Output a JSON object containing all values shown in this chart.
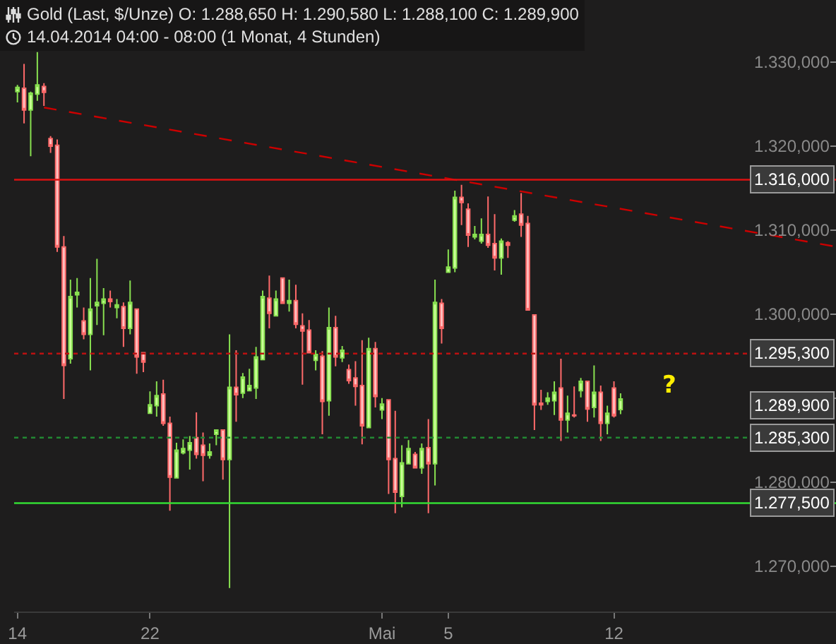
{
  "chart_data": {
    "type": "candlestick",
    "title": "Gold (Last, $/Unze)  O: 1.288,650  H: 1.290,580  L: 1.288,100  C: 1.289,900",
    "subtitle": "14.04.2014 04:00 - 08:00 (1 Monat, 4 Stunden)",
    "categories": [
      "14",
      null,
      null,
      null,
      null,
      null,
      null,
      null,
      null,
      null,
      null,
      null,
      null,
      null,
      null,
      null,
      null,
      null,
      null,
      null,
      "22",
      null,
      null,
      null,
      null,
      null,
      null,
      null,
      null,
      null,
      null,
      null,
      null,
      null,
      null,
      null,
      null,
      null,
      null,
      null,
      null,
      null,
      null,
      null,
      null,
      null,
      null,
      null,
      null,
      null,
      null,
      null,
      null,
      null,
      null,
      "Mai",
      null,
      null,
      null,
      null,
      null,
      null,
      null,
      null,
      null,
      "5",
      null,
      null,
      null,
      null,
      null,
      null,
      null,
      null,
      null,
      null,
      null,
      null,
      null,
      null,
      null,
      null,
      null,
      null,
      null,
      null,
      null,
      null,
      null,
      null,
      "12",
      null,
      null,
      null,
      null,
      null,
      null,
      null,
      null,
      null,
      null,
      null,
      null,
      null,
      null,
      null,
      null,
      null,
      null,
      null,
      null,
      null,
      null,
      null,
      null,
      null,
      null,
      null,
      null,
      null,
      null,
      null,
      null,
      null
    ],
    "ohlc": [
      [
        1326.5,
        1327.3,
        1325.2,
        1327.0
      ],
      [
        1326.9,
        1329.8,
        1322.7,
        1324.3
      ],
      [
        1324.3,
        1326.5,
        1318.8,
        1326.3
      ],
      [
        1326.2,
        1331.2,
        1325.4,
        1327.3
      ],
      [
        1327.1,
        1327.5,
        1324.8,
        1326.4
      ],
      [
        1320.9,
        1321.2,
        1319.2,
        1320.0
      ],
      [
        1320.1,
        1320.8,
        1307.4,
        1308.0
      ],
      [
        1308.0,
        1309.3,
        1289.9,
        1293.9
      ],
      [
        1294.7,
        1304.1,
        1294.1,
        1302.1
      ],
      [
        1302.3,
        1304.3,
        1300.8,
        1302.6
      ],
      [
        1299.2,
        1300.8,
        1297.0,
        1297.6
      ],
      [
        1297.6,
        1304.3,
        1293.3,
        1300.6
      ],
      [
        1301.0,
        1306.6,
        1298.7,
        1301.4
      ],
      [
        1301.3,
        1303.1,
        1297.5,
        1301.8
      ],
      [
        1301.8,
        1302.8,
        1300.8,
        1301.5
      ],
      [
        1300.8,
        1301.8,
        1299.5,
        1301.1
      ],
      [
        1300.9,
        1301.4,
        1296.1,
        1298.3
      ],
      [
        1298.3,
        1304.0,
        1297.6,
        1301.4
      ],
      [
        1300.6,
        1300.6,
        1292.9,
        1294.9
      ],
      [
        1295.4,
        1295.5,
        1293.1,
        1294.3
      ],
      [
        1288.2,
        1290.8,
        1288.2,
        1289.2
      ],
      [
        1289.1,
        1292.0,
        1287.8,
        1290.3
      ],
      [
        1290.5,
        1292.2,
        1286.7,
        1287.0
      ],
      [
        1287.0,
        1287.8,
        1276.6,
        1280.6
      ],
      [
        1280.5,
        1284.7,
        1280.5,
        1283.8
      ],
      [
        1283.5,
        1285.1,
        1283.3,
        1284.0
      ],
      [
        1283.8,
        1285.5,
        1281.5,
        1284.7
      ],
      [
        1285.3,
        1288.3,
        1282.8,
        1283.3
      ],
      [
        1284.4,
        1285.9,
        1280.1,
        1283.2
      ],
      [
        1283.2,
        1284.6,
        1282.8,
        1283.6
      ],
      [
        1285.7,
        1286.2,
        1284.4,
        1286.2
      ],
      [
        1286.2,
        1286.2,
        1280.3,
        1282.7
      ],
      [
        1282.7,
        1297.6,
        1267.4,
        1291.3
      ],
      [
        1291.3,
        1295.7,
        1287.2,
        1290.4
      ],
      [
        1290.6,
        1293.0,
        1290.0,
        1292.5
      ],
      [
        1290.9,
        1293.5,
        1290.9,
        1291.5
      ],
      [
        1291.2,
        1296.1,
        1289.9,
        1294.9
      ],
      [
        1294.6,
        1302.8,
        1294.6,
        1302.1
      ],
      [
        1301.9,
        1304.6,
        1298.3,
        1300.1
      ],
      [
        1299.8,
        1302.8,
        1299.8,
        1301.8
      ],
      [
        1304.3,
        1304.3,
        1301.3,
        1301.3
      ],
      [
        1301.3,
        1304.1,
        1300.3,
        1301.6
      ],
      [
        1301.6,
        1303.5,
        1298.3,
        1298.8
      ],
      [
        1298.6,
        1300.1,
        1291.6,
        1298.0
      ],
      [
        1298.1,
        1299.3,
        1295.4,
        1295.4
      ],
      [
        1294.5,
        1295.7,
        1293.3,
        1295.2
      ],
      [
        1295.0,
        1295.6,
        1285.7,
        1289.6
      ],
      [
        1289.7,
        1300.8,
        1287.9,
        1298.4
      ],
      [
        1298.4,
        1299.8,
        1293.8,
        1294.9
      ],
      [
        1294.8,
        1296.2,
        1294.3,
        1295.7
      ],
      [
        1293.4,
        1294.0,
        1291.7,
        1292.1
      ],
      [
        1292.4,
        1294.4,
        1289.1,
        1291.4
      ],
      [
        1291.5,
        1296.9,
        1284.5,
        1286.7
      ],
      [
        1286.5,
        1297.2,
        1286.5,
        1295.9
      ],
      [
        1295.9,
        1296.7,
        1288.9,
        1290.2
      ],
      [
        1288.6,
        1290.0,
        1287.5,
        1289.3
      ],
      [
        1289.8,
        1289.8,
        1278.6,
        1282.7
      ],
      [
        1282.8,
        1288.5,
        1276.3,
        1278.8
      ],
      [
        1278.3,
        1284.4,
        1277.0,
        1282.3
      ],
      [
        1282.2,
        1285.0,
        1282.2,
        1284.0
      ],
      [
        1283.3,
        1283.6,
        1281.7,
        1281.7
      ],
      [
        1281.7,
        1284.6,
        1281.0,
        1284.0
      ],
      [
        1284.1,
        1287.5,
        1276.3,
        1282.2
      ],
      [
        1282.2,
        1304.1,
        1279.6,
        1301.4
      ],
      [
        1301.3,
        1301.8,
        1296.5,
        1298.3
      ],
      [
        1305.0,
        1307.7,
        1304.9,
        1305.6
      ],
      [
        1305.5,
        1314.7,
        1305.0,
        1313.9
      ],
      [
        1313.9,
        1315.4,
        1310.6,
        1313.3
      ],
      [
        1312.5,
        1313.2,
        1308.0,
        1309.4
      ],
      [
        1309.2,
        1310.5,
        1308.9,
        1309.5
      ],
      [
        1308.7,
        1311.4,
        1308.4,
        1309.5
      ],
      [
        1309.5,
        1314.0,
        1307.9,
        1308.2
      ],
      [
        1308.4,
        1311.9,
        1305.2,
        1306.7
      ],
      [
        1306.7,
        1309.0,
        1304.7,
        1308.7
      ],
      [
        1308.5,
        1308.7,
        1306.7,
        1308.2
      ],
      [
        1311.2,
        1312.4,
        1311.0,
        1311.7
      ],
      [
        1311.9,
        1314.4,
        1309.2,
        1310.6
      ],
      [
        1310.8,
        1311.7,
        1300.5,
        1300.5
      ],
      [
        1299.9,
        1299.9,
        1286.2,
        1289.2
      ],
      [
        1289.4,
        1291.0,
        1288.6,
        1289.2
      ],
      [
        1289.6,
        1290.7,
        1289.2,
        1290.0
      ],
      [
        1289.7,
        1292.0,
        1288.0,
        1290.7
      ],
      [
        1291.2,
        1294.7,
        1284.9,
        1287.4
      ],
      [
        1287.4,
        1290.3,
        1285.9,
        1288.2
      ],
      [
        1288.0,
        1291.4,
        1287.7,
        1287.9
      ],
      [
        1290.9,
        1292.4,
        1290.1,
        1292.0
      ],
      [
        1292.0,
        1292.0,
        1287.2,
        1288.7
      ],
      [
        1288.9,
        1293.9,
        1287.7,
        1290.7
      ],
      [
        1290.7,
        1291.5,
        1284.9,
        1287.0
      ],
      [
        1287.0,
        1289.1,
        1285.7,
        1288.2
      ],
      [
        1291.2,
        1292.0,
        1287.7,
        1287.9
      ],
      [
        1288.65,
        1290.58,
        1288.1,
        1289.9
      ],
      null,
      null,
      null,
      null,
      null,
      null,
      null,
      null,
      null,
      null,
      null,
      null,
      null,
      null,
      null,
      null,
      null,
      null,
      null,
      null,
      null,
      null,
      null,
      null,
      null,
      null,
      null,
      null,
      null,
      null,
      null,
      null
    ],
    "series": [
      {
        "type": "line",
        "color": "#cc0000",
        "line_style": "dashed",
        "values": [
          null,
          null,
          null,
          null,
          1324.6,
          null,
          null,
          null,
          null,
          null,
          null,
          null,
          null,
          null,
          null,
          null,
          null,
          null,
          null,
          null,
          null,
          null,
          null,
          null,
          null,
          null,
          null,
          null,
          null,
          null,
          null,
          null,
          null,
          null,
          null,
          null,
          null,
          null,
          null,
          null,
          null,
          null,
          null,
          null,
          null,
          null,
          null,
          null,
          null,
          null,
          null,
          null,
          null,
          null,
          null,
          null,
          null,
          null,
          null,
          null,
          null,
          null,
          null,
          null,
          null,
          null,
          null,
          null,
          null,
          null,
          null,
          null,
          null,
          null,
          null,
          null,
          null,
          null,
          null,
          null,
          null,
          null,
          null,
          null,
          null,
          null,
          null,
          null,
          null,
          null,
          null,
          null,
          null,
          null,
          null,
          null,
          null,
          null,
          null,
          null,
          null,
          null,
          null,
          null,
          null,
          null,
          null,
          null,
          null,
          null,
          null,
          null,
          null,
          null,
          null,
          null,
          null,
          null,
          null,
          null,
          null,
          null,
          null,
          1308.1
        ]
      }
    ],
    "ylim": [
      1264.6,
      1337.4
    ],
    "yticks": [
      {
        "value": 1270,
        "label": "1.270,000"
      },
      {
        "value": 1280,
        "label": "1.280,000"
      },
      {
        "value": 1290,
        "label": null
      },
      {
        "value": 1300,
        "label": "1.300,000"
      },
      {
        "value": 1310,
        "label": "1.310,000"
      },
      {
        "value": 1320,
        "label": "1.320,000"
      },
      {
        "value": 1330,
        "label": "1.330,000"
      }
    ],
    "ref_lines": [
      {
        "axis": "y",
        "value": 1316,
        "label": "1.316,000",
        "color": "#dd1111",
        "line_style": "solid"
      },
      {
        "axis": "y",
        "value": 1295.3,
        "label": "1.295,300",
        "color": "#bb1111",
        "line_style": "dotted"
      },
      {
        "axis": "y",
        "value": 1285.3,
        "label": "1.285,300",
        "color": "#228833",
        "line_style": "dotted"
      },
      {
        "axis": "y",
        "value": 1277.5,
        "label": "1.277,500",
        "color": "#33dd33",
        "line_style": "solid"
      }
    ],
    "annotations": [
      "1.289,900",
      "?"
    ]
  }
}
